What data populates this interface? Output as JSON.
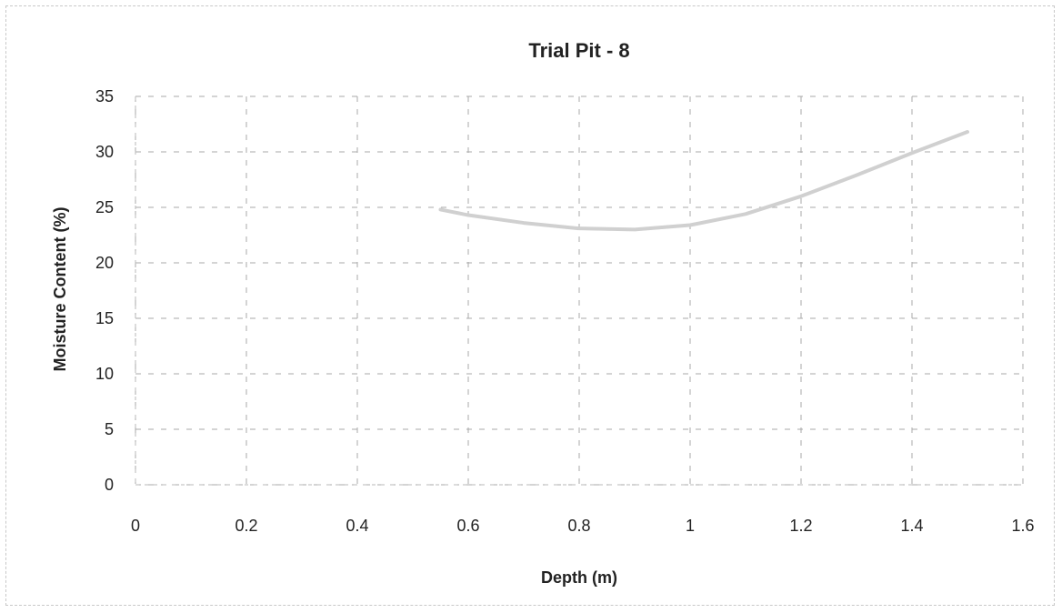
{
  "chart_data": {
    "type": "line",
    "title": "Trial Pit - 8",
    "xlabel": "Depth (m)",
    "ylabel": "Moisture Content (%)",
    "xlim": [
      0,
      1.6
    ],
    "ylim": [
      0,
      35
    ],
    "x_ticks": [
      "0",
      "0.2",
      "0.4",
      "0.6",
      "0.8",
      "1",
      "1.2",
      "1.4",
      "1.6"
    ],
    "y_ticks": [
      "0",
      "5",
      "10",
      "15",
      "20",
      "25",
      "30",
      "35"
    ],
    "grid": true,
    "legend": "none",
    "series": [
      {
        "color": "#d0d0d0",
        "x": [
          0.55,
          0.6,
          0.7,
          0.8,
          0.9,
          1.0,
          1.1,
          1.2,
          1.3,
          1.4,
          1.5
        ],
        "y": [
          24.8,
          24.3,
          23.6,
          23.1,
          23.0,
          23.4,
          24.4,
          26.0,
          27.9,
          29.9,
          31.8
        ]
      }
    ]
  }
}
